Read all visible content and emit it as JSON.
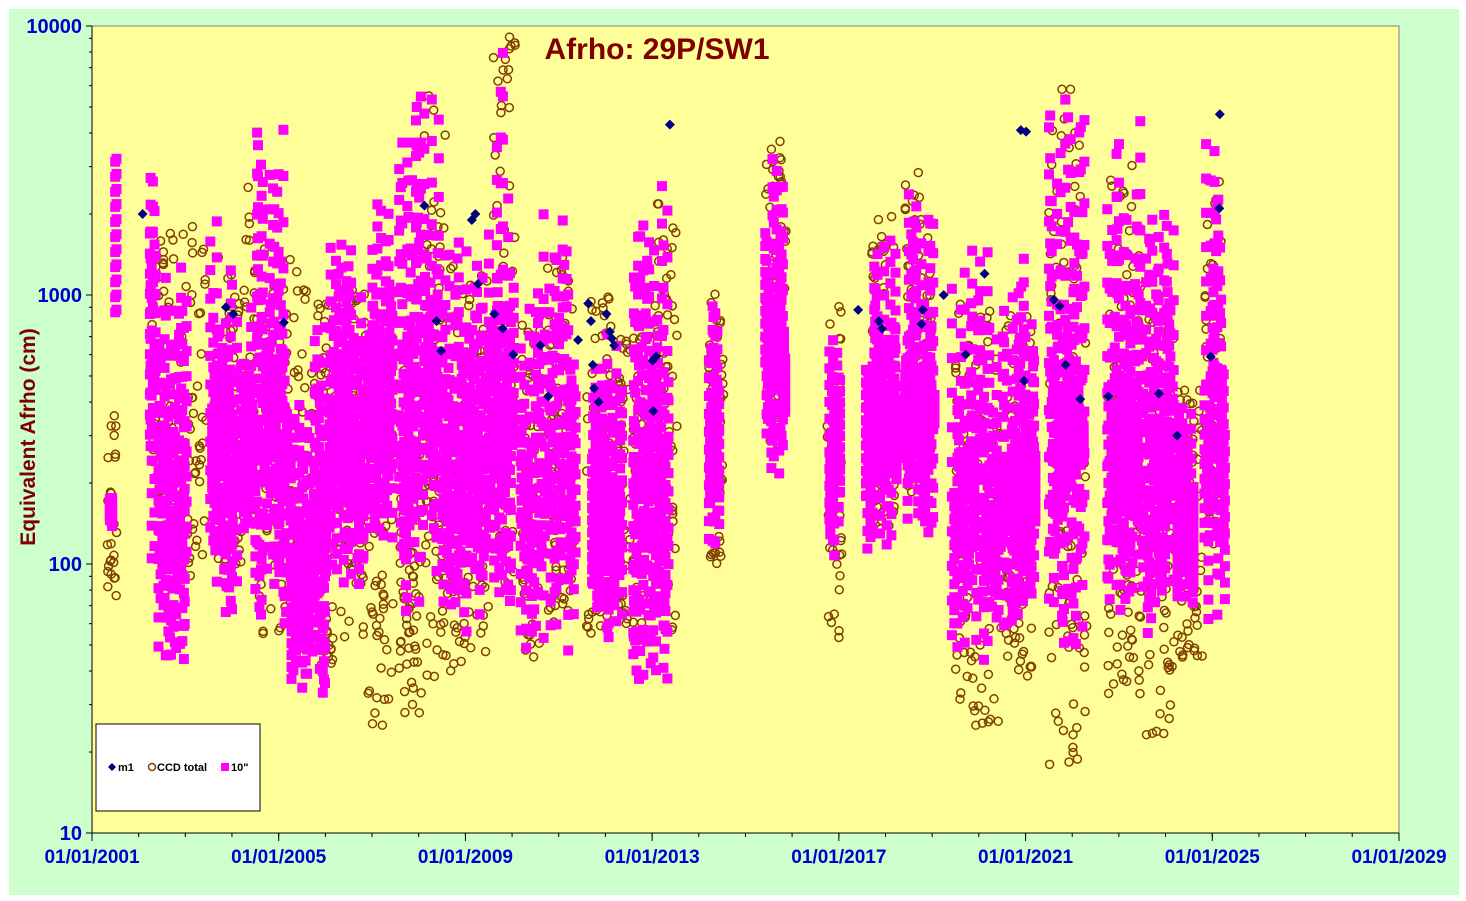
{
  "chart_data": {
    "type": "scatter",
    "title": "Afrho: 29P/SW1",
    "ylabel": "Equivalent Afrho (cm)",
    "xlabel": "",
    "y_scale": "log",
    "ylim": [
      10,
      10000
    ],
    "y_ticks": [
      "10",
      "100",
      "1000",
      "10000"
    ],
    "xlim": [
      "01/01/2001",
      "01/01/2029"
    ],
    "x_ticks": [
      "01/01/2001",
      "01/01/2005",
      "01/01/2009",
      "01/01/2013",
      "01/01/2017",
      "01/01/2021",
      "01/01/2025",
      "01/01/2029"
    ],
    "grid": false,
    "legend_position": "bottom-left",
    "plot_background": "#ffff99",
    "outer_background": "#ccffcc",
    "series": [
      {
        "name": "m1",
        "marker": "diamond",
        "color": "#000080",
        "points": [
          [
            "2002-02-01",
            2000
          ],
          [
            "2003-11-15",
            900
          ],
          [
            "2004-01-10",
            850
          ],
          [
            "2005-02-10",
            790
          ],
          [
            "2008-02-15",
            2150
          ],
          [
            "2008-05-20",
            800
          ],
          [
            "2008-06-25",
            620
          ],
          [
            "2009-02-20",
            1900
          ],
          [
            "2009-03-20",
            2000
          ],
          [
            "2009-04-10",
            1100
          ],
          [
            "2009-08-15",
            850
          ],
          [
            "2009-10-20",
            750
          ],
          [
            "2010-01-10",
            600
          ],
          [
            "2010-08-10",
            650
          ],
          [
            "2010-10-10",
            420
          ],
          [
            "2011-06-01",
            680
          ],
          [
            "2011-08-20",
            930
          ],
          [
            "2011-09-10",
            800
          ],
          [
            "2011-09-25",
            550
          ],
          [
            "2011-10-05",
            450
          ],
          [
            "2011-11-10",
            400
          ],
          [
            "2012-01-10",
            850
          ],
          [
            "2012-02-05",
            730
          ],
          [
            "2012-02-20",
            690
          ],
          [
            "2012-03-10",
            650
          ],
          [
            "2013-01-05",
            570
          ],
          [
            "2013-02-01",
            590
          ],
          [
            "2013-01-10",
            370
          ],
          [
            "2013-05-20",
            4300
          ],
          [
            "2017-06-01",
            880
          ],
          [
            "2017-11-10",
            800
          ],
          [
            "2017-12-05",
            750
          ],
          [
            "2018-10-10",
            780
          ],
          [
            "2018-10-20",
            880
          ],
          [
            "2019-04-01",
            1000
          ],
          [
            "2019-09-20",
            600
          ],
          [
            "2020-02-15",
            1200
          ],
          [
            "2020-11-25",
            4100
          ],
          [
            "2021-01-05",
            4050
          ],
          [
            "2020-12-20",
            480
          ],
          [
            "2021-08-10",
            960
          ],
          [
            "2021-09-25",
            910
          ],
          [
            "2021-11-10",
            550
          ],
          [
            "2022-03-05",
            410
          ],
          [
            "2022-10-10",
            420
          ],
          [
            "2023-11-10",
            430
          ],
          [
            "2024-04-01",
            300
          ],
          [
            "2024-12-20",
            590
          ],
          [
            "2025-02-25",
            2100
          ],
          [
            "2025-03-01",
            4700
          ]
        ]
      },
      {
        "name": "CCD total",
        "marker": "circle",
        "color": "#804000",
        "ranges": [
          [
            "2001-05-01",
            "2001-07-15",
            76,
            370
          ],
          [
            "2002-04-01",
            "2002-05-20",
            200,
            1400
          ],
          [
            "2002-06-01",
            "2003-06-15",
            85,
            1800
          ],
          [
            "2003-09-15",
            "2004-03-15",
            88,
            1400
          ],
          [
            "2004-03-20",
            "2004-07-15",
            130,
            2800
          ],
          [
            "2004-08-01",
            "2005-09-01",
            55,
            1500
          ],
          [
            "2005-09-15",
            "2006-03-25",
            40,
            1000
          ],
          [
            "2006-04-01",
            "2006-11-15",
            50,
            1100
          ],
          [
            "2006-12-01",
            "2007-06-15",
            25,
            700
          ],
          [
            "2007-08-01",
            "2008-01-25",
            28,
            600
          ],
          [
            "2008-02-01",
            "2008-08-15",
            38,
            5500
          ],
          [
            "2008-09-01",
            "2009-07-20",
            40,
            1300
          ],
          [
            "2009-08-01",
            "2010-01-25",
            80,
            9300
          ],
          [
            "2010-03-10",
            "2010-08-25",
            45,
            900
          ],
          [
            "2010-10-01",
            "2011-04-25",
            60,
            1400
          ],
          [
            "2011-08-01",
            "2012-02-15",
            52,
            1000
          ],
          [
            "2012-04-01",
            "2012-11-15",
            60,
            700
          ],
          [
            "2013-01-01",
            "2013-07-15",
            55,
            2500
          ],
          [
            "2014-03-15",
            "2014-07-15",
            95,
            1050
          ],
          [
            "2015-06-01",
            "2015-11-15",
            250,
            3800
          ],
          [
            "2016-10-01",
            "2017-01-25",
            53,
            1050
          ],
          [
            "2017-09-15",
            "2018-03-15",
            130,
            2000
          ],
          [
            "2018-06-01",
            "2018-12-25",
            170,
            3000
          ],
          [
            "2019-07-01",
            "2020-06-25",
            23,
            1000
          ],
          [
            "2020-08-01",
            "2021-02-25",
            38,
            900
          ],
          [
            "2021-07-01",
            "2022-04-25",
            17,
            6000
          ],
          [
            "2022-10-01",
            "2023-06-25",
            32,
            3100
          ],
          [
            "2023-08-01",
            "2024-03-25",
            23,
            900
          ],
          [
            "2024-04-01",
            "2024-10-15",
            45,
            450
          ],
          [
            "2024-11-01",
            "2025-03-15",
            110,
            3000
          ]
        ]
      },
      {
        "name": "10\"",
        "marker": "square",
        "color": "#ff00ff",
        "ranges": [
          [
            "2001-05-15",
            "2001-06-15",
            135,
            180
          ],
          [
            "2001-07-01",
            "2001-07-15",
            600,
            4200
          ],
          [
            "2002-03-25",
            "2002-05-20",
            70,
            5000
          ],
          [
            "2002-06-01",
            "2003-01-15",
            44,
            1300
          ],
          [
            "2003-07-15",
            "2004-02-15",
            63,
            2000
          ],
          [
            "2004-03-01",
            "2004-06-15",
            120,
            900
          ],
          [
            "2004-07-01",
            "2005-03-15",
            57,
            4500
          ],
          [
            "2005-04-01",
            "2006-01-15",
            33,
            800
          ],
          [
            "2006-02-01",
            "2006-11-15",
            80,
            1800
          ],
          [
            "2006-12-01",
            "2007-06-15",
            120,
            2200
          ],
          [
            "2007-08-01",
            "2008-01-25",
            42,
            6400
          ],
          [
            "2008-02-01",
            "2008-06-15",
            90,
            9000
          ],
          [
            "2008-07-01",
            "2009-06-15",
            55,
            1600
          ],
          [
            "2009-07-01",
            "2010-01-20",
            70,
            8100
          ],
          [
            "2010-03-01",
            "2011-05-25",
            47,
            2100
          ],
          [
            "2011-09-15",
            "2012-05-15",
            53,
            800
          ],
          [
            "2012-08-01",
            "2013-05-15",
            36,
            2600
          ],
          [
            "2014-03-15",
            "2014-06-15",
            98,
            1050
          ],
          [
            "2015-06-01",
            "2015-11-15",
            215,
            3600
          ],
          [
            "2016-10-15",
            "2017-01-15",
            100,
            900
          ],
          [
            "2017-08-01",
            "2018-04-15",
            110,
            2000
          ],
          [
            "2018-06-01",
            "2019-01-25",
            125,
            2900
          ],
          [
            "2019-06-01",
            "2020-08-15",
            42,
            1500
          ],
          [
            "2020-09-01",
            "2021-03-25",
            58,
            1550
          ],
          [
            "2021-07-01",
            "2022-04-15",
            50,
            6100
          ],
          [
            "2022-10-01",
            "2023-07-15",
            60,
            4500
          ],
          [
            "2023-08-01",
            "2024-03-15",
            55,
            2200
          ],
          [
            "2024-04-01",
            "2024-08-15",
            70,
            400
          ],
          [
            "2024-11-01",
            "2025-04-15",
            60,
            3700
          ]
        ]
      }
    ],
    "legend": [
      "m1",
      "CCD total",
      "10\""
    ]
  }
}
